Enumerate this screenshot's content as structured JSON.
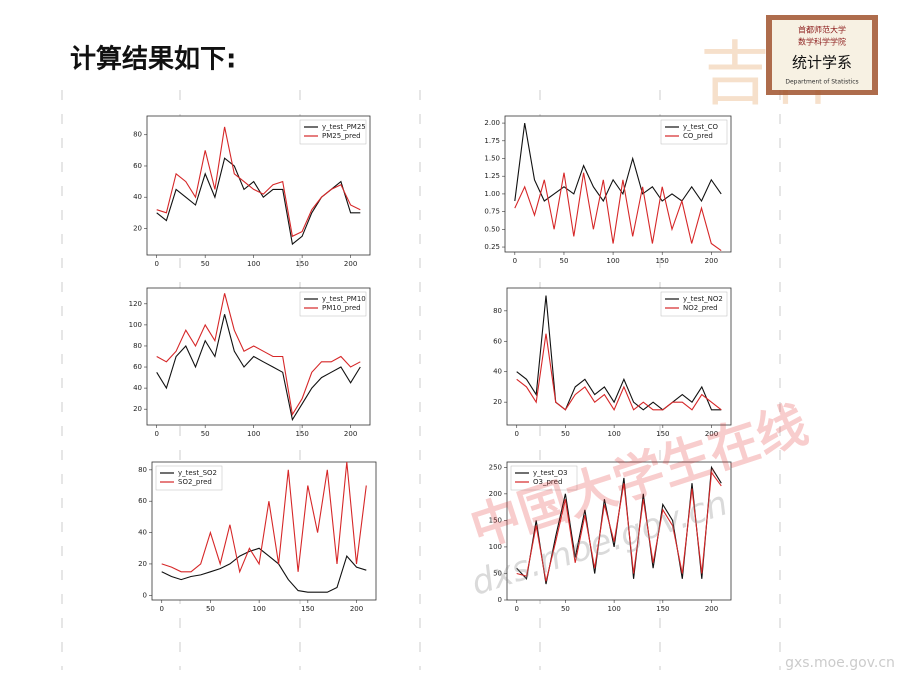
{
  "slide": {
    "title": "计算结果如下:"
  },
  "logo": {
    "university": "首都师范大学",
    "college": "数学科学学院",
    "department": "统计学系",
    "english": "Department of Statistics"
  },
  "watermark": {
    "cn": "中国大学生在线",
    "url": "dxs.moe.gov.cn",
    "footer": "gxs.moe.gov.cn"
  },
  "chart_data": [
    {
      "type": "line",
      "x": [
        0,
        10,
        20,
        30,
        40,
        50,
        60,
        70,
        80,
        90,
        100,
        110,
        120,
        130,
        140,
        150,
        160,
        170,
        180,
        190,
        200,
        210
      ],
      "xlim": [
        -10,
        220
      ],
      "xticks": [
        0,
        50,
        100,
        150,
        200
      ],
      "ylim": [
        3,
        92
      ],
      "yticks": [
        20,
        40,
        60,
        80
      ],
      "legend": "upper right",
      "series": [
        {
          "name": "y_test_PM25",
          "color": "#111111",
          "values": [
            30,
            25,
            45,
            40,
            35,
            55,
            40,
            65,
            60,
            45,
            50,
            40,
            45,
            45,
            10,
            15,
            30,
            40,
            45,
            50,
            30,
            30
          ]
        },
        {
          "name": "PM25_pred",
          "color": "#d62728",
          "values": [
            32,
            30,
            55,
            50,
            40,
            70,
            45,
            85,
            55,
            50,
            45,
            42,
            48,
            50,
            15,
            18,
            32,
            40,
            45,
            48,
            35,
            32
          ]
        }
      ]
    },
    {
      "type": "line",
      "x": [
        0,
        10,
        20,
        30,
        40,
        50,
        60,
        70,
        80,
        90,
        100,
        110,
        120,
        130,
        140,
        150,
        160,
        170,
        180,
        190,
        200,
        210
      ],
      "xlim": [
        -10,
        220
      ],
      "xticks": [
        0,
        50,
        100,
        150,
        200
      ],
      "ylim": [
        0.18,
        2.1
      ],
      "yticks": [
        0.25,
        {
          "value": 0.5,
          "label": "0.50"
        },
        0.75,
        {
          "value": 1,
          "label": "1.00"
        },
        1.25,
        {
          "value": 1.5,
          "label": "1.50"
        },
        1.75,
        {
          "value": 2,
          "label": "2.00"
        }
      ],
      "legend": "upper right",
      "series": [
        {
          "name": "y_test_CO",
          "color": "#111111",
          "values": [
            0.9,
            2.0,
            1.2,
            0.9,
            1.0,
            1.1,
            1.0,
            1.4,
            1.1,
            0.9,
            1.2,
            1.0,
            1.5,
            1.0,
            1.1,
            0.9,
            1.0,
            0.9,
            1.1,
            0.9,
            1.2,
            1.0
          ]
        },
        {
          "name": "CO_pred",
          "color": "#d62728",
          "values": [
            0.8,
            1.1,
            0.7,
            1.2,
            0.5,
            1.3,
            0.4,
            1.3,
            0.5,
            1.2,
            0.3,
            1.2,
            0.4,
            1.1,
            0.3,
            1.1,
            0.5,
            0.9,
            0.3,
            0.8,
            0.3,
            0.2
          ]
        }
      ]
    },
    {
      "type": "line",
      "x": [
        0,
        10,
        20,
        30,
        40,
        50,
        60,
        70,
        80,
        90,
        100,
        110,
        120,
        130,
        140,
        150,
        160,
        170,
        180,
        190,
        200,
        210
      ],
      "xlim": [
        -10,
        220
      ],
      "xticks": [
        0,
        50,
        100,
        150,
        200
      ],
      "ylim": [
        5,
        135
      ],
      "yticks": [
        20,
        40,
        60,
        80,
        100,
        120
      ],
      "legend": "upper right",
      "series": [
        {
          "name": "y_test_PM10",
          "color": "#111111",
          "values": [
            55,
            40,
            70,
            80,
            60,
            85,
            70,
            110,
            75,
            60,
            70,
            65,
            60,
            55,
            10,
            25,
            40,
            50,
            55,
            60,
            45,
            60
          ]
        },
        {
          "name": "PM10_pred",
          "color": "#d62728",
          "values": [
            70,
            65,
            75,
            95,
            80,
            100,
            85,
            130,
            95,
            75,
            80,
            75,
            70,
            70,
            15,
            30,
            55,
            65,
            65,
            70,
            60,
            65
          ]
        }
      ]
    },
    {
      "type": "line",
      "x": [
        0,
        10,
        20,
        30,
        40,
        50,
        60,
        70,
        80,
        90,
        100,
        110,
        120,
        130,
        140,
        150,
        160,
        170,
        180,
        190,
        200,
        210
      ],
      "xlim": [
        -10,
        220
      ],
      "xticks": [
        0,
        50,
        100,
        150,
        200
      ],
      "ylim": [
        5,
        95
      ],
      "yticks": [
        20,
        40,
        60,
        80
      ],
      "legend": "upper right",
      "series": [
        {
          "name": "y_test_NO2",
          "color": "#111111",
          "values": [
            40,
            35,
            25,
            90,
            20,
            15,
            30,
            35,
            25,
            30,
            20,
            35,
            20,
            15,
            20,
            15,
            20,
            25,
            20,
            30,
            15,
            15
          ]
        },
        {
          "name": "NO2_pred",
          "color": "#d62728",
          "values": [
            35,
            30,
            20,
            65,
            20,
            15,
            25,
            30,
            20,
            25,
            15,
            30,
            15,
            20,
            15,
            15,
            20,
            20,
            15,
            25,
            20,
            15
          ]
        }
      ]
    },
    {
      "type": "line",
      "x": [
        0,
        10,
        20,
        30,
        40,
        50,
        60,
        70,
        80,
        90,
        100,
        110,
        120,
        130,
        140,
        150,
        160,
        170,
        180,
        190,
        200,
        210
      ],
      "xlim": [
        -10,
        220
      ],
      "xticks": [
        0,
        50,
        100,
        150,
        200
      ],
      "ylim": [
        -3,
        85
      ],
      "yticks": [
        0,
        20,
        40,
        60,
        80
      ],
      "legend": "upper left",
      "series": [
        {
          "name": "y_test_SO2",
          "color": "#111111",
          "values": [
            15,
            12,
            10,
            12,
            13,
            15,
            17,
            20,
            25,
            28,
            30,
            25,
            20,
            10,
            3,
            2,
            2,
            2,
            5,
            25,
            18,
            16
          ]
        },
        {
          "name": "SO2_pred",
          "color": "#d62728",
          "values": [
            20,
            18,
            15,
            15,
            20,
            40,
            20,
            45,
            15,
            30,
            20,
            60,
            20,
            80,
            15,
            70,
            40,
            80,
            20,
            85,
            20,
            70
          ]
        }
      ]
    },
    {
      "type": "line",
      "x": [
        0,
        10,
        20,
        30,
        40,
        50,
        60,
        70,
        80,
        90,
        100,
        110,
        120,
        130,
        140,
        150,
        160,
        170,
        180,
        190,
        200,
        210
      ],
      "xlim": [
        -10,
        220
      ],
      "xticks": [
        0,
        50,
        100,
        150,
        200
      ],
      "ylim": [
        0,
        260
      ],
      "yticks": [
        0,
        50,
        100,
        150,
        200,
        250
      ],
      "legend": "upper left",
      "series": [
        {
          "name": "y_test_O3",
          "color": "#111111",
          "values": [
            60,
            40,
            150,
            30,
            120,
            200,
            80,
            170,
            50,
            190,
            100,
            230,
            40,
            200,
            60,
            180,
            150,
            40,
            220,
            40,
            250,
            220
          ]
        },
        {
          "name": "O3_pred",
          "color": "#d62728",
          "values": [
            50,
            45,
            140,
            35,
            110,
            190,
            70,
            160,
            60,
            180,
            110,
            220,
            50,
            190,
            70,
            170,
            140,
            50,
            210,
            50,
            240,
            215
          ]
        }
      ]
    }
  ]
}
